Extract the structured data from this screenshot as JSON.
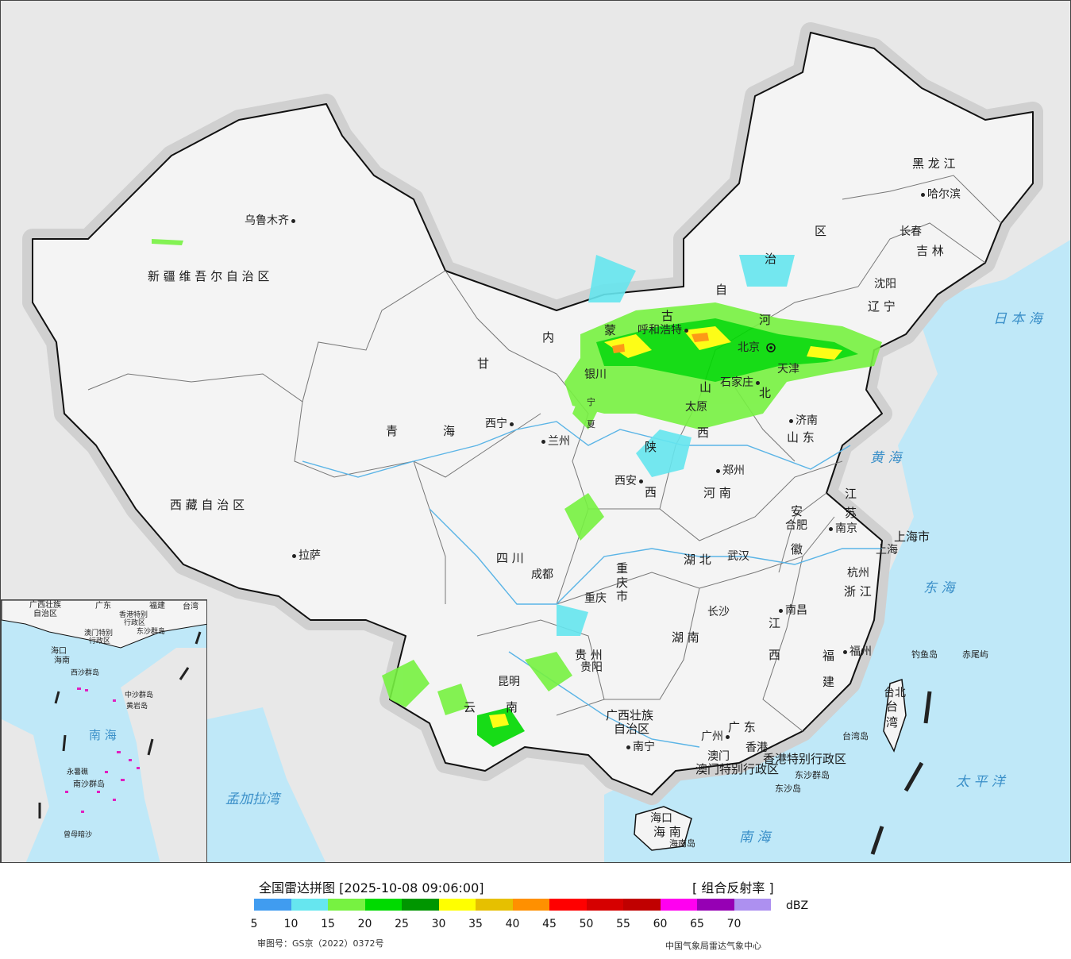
{
  "map": {
    "cities": {
      "urumqi": "乌鲁木齐",
      "lhasa": "拉萨",
      "xining": "西宁",
      "lanzhou": "兰州",
      "yinchuan": "银川",
      "hohhot": "呼和浩特",
      "beijing": "北京",
      "tianjin": "天津",
      "shijiazhuang": "石家庄",
      "taiyuan": "太原",
      "jinan": "济南",
      "zhengzhou": "郑州",
      "xian": "西安",
      "chengdu": "成都",
      "chongqing": "重庆",
      "wuhan": "武汉",
      "hefei": "合肥",
      "nanjing": "南京",
      "shanghai": "上海",
      "hangzhou": "杭州",
      "nanchang": "南昌",
      "changsha": "长沙",
      "guiyang": "贵阳",
      "kunming": "昆明",
      "nanning": "南宁",
      "guangzhou": "广州",
      "hongkong": "香港",
      "macau": "澳门",
      "fuzhou": "福州",
      "taipei": "台北",
      "haikou": "海口",
      "shenyang": "沈阳",
      "changchun": "长春",
      "harbin": "哈尔滨"
    },
    "provinces": {
      "xinjiang": "新 疆 维 吾 尔 自 治 区",
      "tibet": "西 藏 自 治 区",
      "qinghai_1": "青",
      "qinghai_2": "海",
      "gansu": "甘",
      "neimenggu_1": "内",
      "neimenggu_2": "蒙",
      "neimenggu_3": "古",
      "neimenggu_4": "自",
      "neimenggu_5": "治",
      "neimenggu_6": "区",
      "heilongjiang": "黑 龙 江",
      "jilin": "吉 林",
      "liaoning": "辽 宁",
      "hebei_1": "河",
      "hebei_2": "北",
      "shanxi_1": "山",
      "shanxi_2": "西",
      "shandong": "山 东",
      "henan": "河 南",
      "shaanxi_1": "陕",
      "shaanxi_2": "西",
      "sichuan": "四 川",
      "chongqing_1": "重",
      "chongqing_2": "庆",
      "chongqing_3": "市",
      "hubei": "湖 北",
      "hunan": "湖 南",
      "anhui_1": "安",
      "anhui_2": "徽",
      "jiangsu_1": "江",
      "jiangsu_2": "苏",
      "zhejiang": "浙 江",
      "jiangxi_1": "江",
      "jiangxi_2": "西",
      "fujian_1": "福",
      "fujian_2": "建",
      "guizhou": "贵 州",
      "yunnan_1": "云",
      "yunnan_2": "南",
      "guangxi_1": "广西壮族",
      "guangxi_2": "自治区",
      "guangdong": "广 东",
      "hainan": "海 南",
      "hainan_island": "海南岛",
      "taiwan_1": "台",
      "taiwan_2": "湾",
      "taiwan_island": "台湾岛",
      "shanghai_shi": "上海市",
      "hk_sar": "香港特别行政区",
      "macau_sar": "澳门特别行政区",
      "ningxia_1": "宁",
      "ningxia_2": "夏"
    },
    "seas": {
      "japan_sea": "日 本 海",
      "yellow_sea": "黄 海",
      "east_sea": "东 海",
      "pacific": "太 平 洋",
      "south_sea": "南 海",
      "bengal": "孟加拉湾"
    },
    "islands": {
      "diaoyu": "钓鱼岛",
      "chiwei": "赤尾屿",
      "dongsha": "东沙群岛",
      "dongsha_dao": "东沙岛"
    },
    "inset": {
      "title": "南 海",
      "labels": [
        "广西壮族",
        "自治区",
        "广东",
        "福建",
        "台湾",
        "海口",
        "海南",
        "东沙群岛",
        "西沙群岛",
        "中沙群岛",
        "黄岩岛",
        "南沙群岛",
        "永暑礁",
        "曾母暗沙",
        "香港特别",
        "行政区",
        "澳门特别",
        "行政区"
      ]
    }
  },
  "legend": {
    "title": "全国雷达拼图 [2025-10-08 09:06:00]",
    "product": "[ 组合反射率 ]",
    "unit": "dBZ",
    "ticks": [
      "5",
      "10",
      "15",
      "20",
      "25",
      "30",
      "35",
      "40",
      "45",
      "50",
      "55",
      "60",
      "65",
      "70"
    ],
    "colors": [
      "#409cf0",
      "#66e6ef",
      "#77f241",
      "#00da00",
      "#009600",
      "#ffff00",
      "#e6c000",
      "#ff9000",
      "#ff0000",
      "#d60000",
      "#c00000",
      "#ff00f0",
      "#9600b4",
      "#ad90f0"
    ],
    "approval": "审图号：GS京（2022）0372号",
    "producer": "中国气象局雷达气象中心"
  }
}
